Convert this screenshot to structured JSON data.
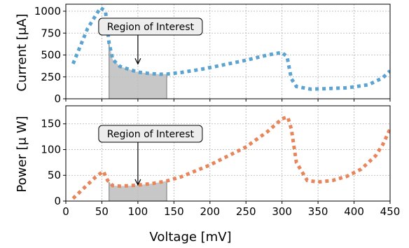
{
  "chart_data": [
    {
      "type": "line",
      "ylabel": "Current [μA]",
      "xlim": [
        0,
        450
      ],
      "ylim": [
        0,
        1080
      ],
      "yticks": [
        0,
        250,
        500,
        750,
        1000
      ],
      "grid": true,
      "series": [
        {
          "color": "#5ba3d0",
          "linestyle": "dotted",
          "x": [
            10,
            30,
            48,
            55,
            60,
            65,
            75,
            90,
            100,
            115,
            130,
            140,
            160,
            190,
            220,
            250,
            280,
            300,
            307,
            313,
            320,
            340,
            360,
            390,
            420,
            440,
            450
          ],
          "y": [
            400,
            800,
            1040,
            1000,
            640,
            450,
            370,
            330,
            305,
            290,
            280,
            282,
            300,
            340,
            390,
            440,
            500,
            530,
            480,
            230,
            140,
            110,
            115,
            125,
            160,
            240,
            320
          ]
        }
      ],
      "shaded_region": {
        "x": [
          60,
          140
        ],
        "color": "#bdbdbd"
      },
      "annotation": {
        "text": "Region of Interest",
        "arrow_to": [
          100,
          390
        ]
      }
    },
    {
      "type": "line",
      "ylabel": "Power [μ W]",
      "xlabel": "Voltage [mV]",
      "xlim": [
        0,
        450
      ],
      "ylim": [
        0,
        185
      ],
      "xticks": [
        0,
        50,
        100,
        150,
        200,
        250,
        300,
        350,
        400,
        450
      ],
      "yticks": [
        0,
        50,
        100,
        150
      ],
      "grid": true,
      "series": [
        {
          "color": "#e8855a",
          "linestyle": "dotted",
          "x": [
            10,
            25,
            40,
            52,
            58,
            65,
            75,
            90,
            100,
            120,
            140,
            160,
            200,
            250,
            280,
            300,
            308,
            313,
            320,
            335,
            350,
            370,
            390,
            410,
            430,
            440,
            450
          ],
          "y": [
            5,
            25,
            45,
            58,
            40,
            30,
            29,
            30,
            31,
            34,
            39,
            47,
            70,
            105,
            135,
            160,
            163,
            140,
            75,
            40,
            37,
            40,
            48,
            62,
            88,
            110,
            140
          ]
        }
      ],
      "shaded_region": {
        "x": [
          60,
          140
        ],
        "color": "#bdbdbd"
      },
      "annotation": {
        "text": "Region of Interest",
        "arrow_to": [
          100,
          30
        ]
      }
    }
  ]
}
